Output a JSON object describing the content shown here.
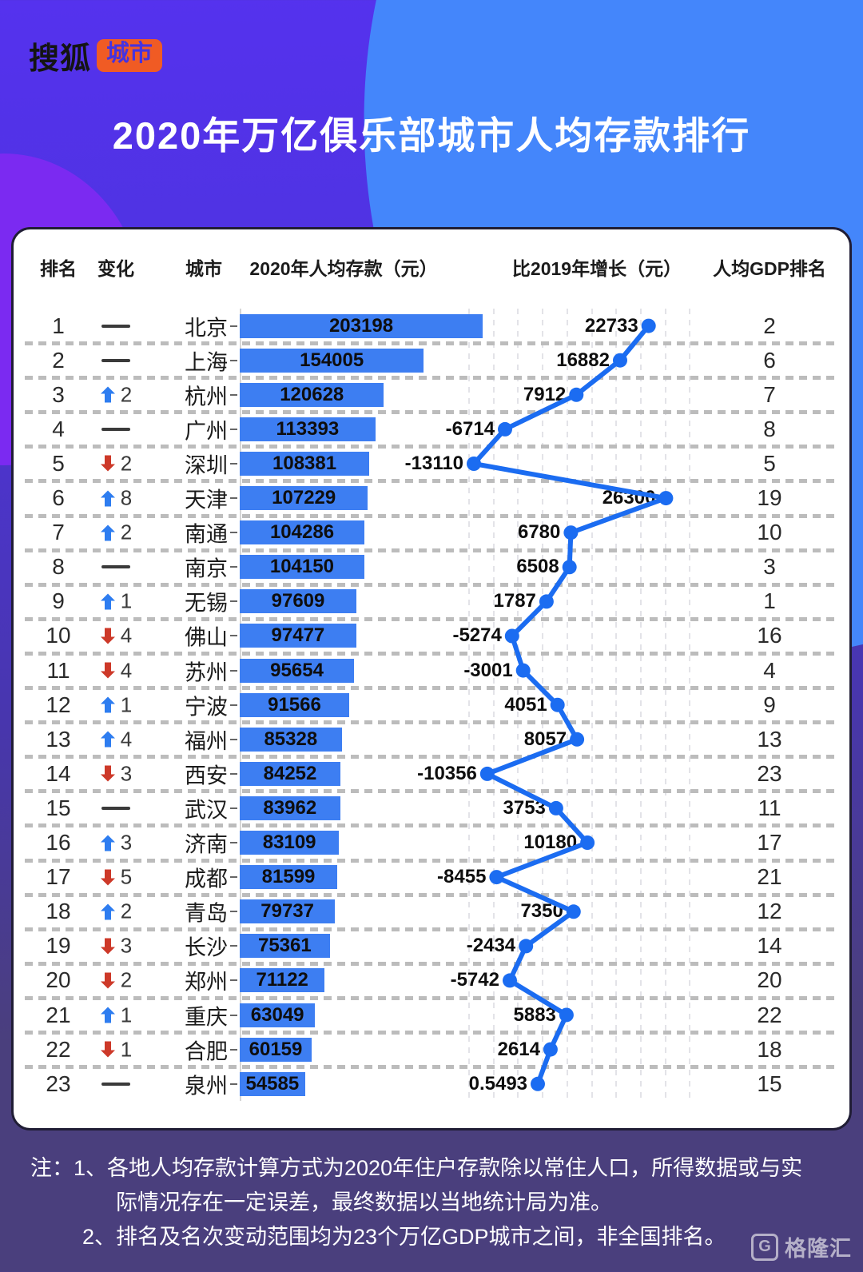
{
  "brand": {
    "sohu": "搜狐",
    "city_tag": "城市"
  },
  "title": "2020年万亿俱乐部城市人均存款排行",
  "table": {
    "headers": {
      "rank": "排名",
      "change": "变化",
      "city": "城市",
      "deposit": "2020年人均存款（元）",
      "growth": "比2019年增长（元）",
      "gdp_rank": "人均GDP排名"
    }
  },
  "chart_data": {
    "type": "table",
    "title": "2020年万亿俱乐部城市人均存款排行",
    "columns": [
      "排名",
      "变化",
      "城市",
      "2020年人均存款（元）",
      "比2019年增长（元）",
      "人均GDP排名"
    ],
    "bar_column": "2020年人均存款（元）",
    "line_column": "比2019年增长（元）",
    "bar_range": [
      0,
      203198
    ],
    "line_range": [
      -13110,
      26300
    ],
    "rows": [
      {
        "rank": "1",
        "change": {
          "dir": "same",
          "value": ""
        },
        "city": "北京",
        "deposit": 203198,
        "deposit_label": "203198",
        "growth": 22733,
        "growth_label": "22733",
        "gdp_rank": "2"
      },
      {
        "rank": "2",
        "change": {
          "dir": "same",
          "value": ""
        },
        "city": "上海",
        "deposit": 154005,
        "deposit_label": "154005",
        "growth": 16882,
        "growth_label": "16882",
        "gdp_rank": "6"
      },
      {
        "rank": "3",
        "change": {
          "dir": "up",
          "value": "2"
        },
        "city": "杭州",
        "deposit": 120628,
        "deposit_label": "120628",
        "growth": 7912,
        "growth_label": "7912",
        "gdp_rank": "7"
      },
      {
        "rank": "4",
        "change": {
          "dir": "same",
          "value": ""
        },
        "city": "广州",
        "deposit": 113393,
        "deposit_label": "113393",
        "growth": -6714,
        "growth_label": "-6714",
        "gdp_rank": "8"
      },
      {
        "rank": "5",
        "change": {
          "dir": "down",
          "value": "2"
        },
        "city": "深圳",
        "deposit": 108381,
        "deposit_label": "108381",
        "growth": -13110,
        "growth_label": "-13110",
        "gdp_rank": "5"
      },
      {
        "rank": "6",
        "change": {
          "dir": "up",
          "value": "8"
        },
        "city": "天津",
        "deposit": 107229,
        "deposit_label": "107229",
        "growth": 26300,
        "growth_label": "26300",
        "gdp_rank": "19"
      },
      {
        "rank": "7",
        "change": {
          "dir": "up",
          "value": "2"
        },
        "city": "南通",
        "deposit": 104286,
        "deposit_label": "104286",
        "growth": 6780,
        "growth_label": "6780",
        "gdp_rank": "10"
      },
      {
        "rank": "8",
        "change": {
          "dir": "same",
          "value": ""
        },
        "city": "南京",
        "deposit": 104150,
        "deposit_label": "104150",
        "growth": 6508,
        "growth_label": "6508",
        "gdp_rank": "3"
      },
      {
        "rank": "9",
        "change": {
          "dir": "up",
          "value": "1"
        },
        "city": "无锡",
        "deposit": 97609,
        "deposit_label": "97609",
        "growth": 1787,
        "growth_label": "1787",
        "gdp_rank": "1"
      },
      {
        "rank": "10",
        "change": {
          "dir": "down",
          "value": "4"
        },
        "city": "佛山",
        "deposit": 97477,
        "deposit_label": "97477",
        "growth": -5274,
        "growth_label": "-5274",
        "gdp_rank": "16"
      },
      {
        "rank": "11",
        "change": {
          "dir": "down",
          "value": "4"
        },
        "city": "苏州",
        "deposit": 95654,
        "deposit_label": "95654",
        "growth": -3001,
        "growth_label": "-3001",
        "gdp_rank": "4"
      },
      {
        "rank": "12",
        "change": {
          "dir": "up",
          "value": "1"
        },
        "city": "宁波",
        "deposit": 91566,
        "deposit_label": "91566",
        "growth": 4051,
        "growth_label": "4051",
        "gdp_rank": "9"
      },
      {
        "rank": "13",
        "change": {
          "dir": "up",
          "value": "4"
        },
        "city": "福州",
        "deposit": 85328,
        "deposit_label": "85328",
        "growth": 8057,
        "growth_label": "8057",
        "gdp_rank": "13"
      },
      {
        "rank": "14",
        "change": {
          "dir": "down",
          "value": "3"
        },
        "city": "西安",
        "deposit": 84252,
        "deposit_label": "84252",
        "growth": -10356,
        "growth_label": "-10356",
        "gdp_rank": "23"
      },
      {
        "rank": "15",
        "change": {
          "dir": "same",
          "value": ""
        },
        "city": "武汉",
        "deposit": 83962,
        "deposit_label": "83962",
        "growth": 3753,
        "growth_label": "3753",
        "gdp_rank": "11"
      },
      {
        "rank": "16",
        "change": {
          "dir": "up",
          "value": "3"
        },
        "city": "济南",
        "deposit": 83109,
        "deposit_label": "83109",
        "growth": 10180,
        "growth_label": "10180",
        "gdp_rank": "17"
      },
      {
        "rank": "17",
        "change": {
          "dir": "down",
          "value": "5"
        },
        "city": "成都",
        "deposit": 81599,
        "deposit_label": "81599",
        "growth": -8455,
        "growth_label": "-8455",
        "gdp_rank": "21"
      },
      {
        "rank": "18",
        "change": {
          "dir": "up",
          "value": "2"
        },
        "city": "青岛",
        "deposit": 79737,
        "deposit_label": "79737",
        "growth": 7350,
        "growth_label": "7350",
        "gdp_rank": "12"
      },
      {
        "rank": "19",
        "change": {
          "dir": "down",
          "value": "3"
        },
        "city": "长沙",
        "deposit": 75361,
        "deposit_label": "75361",
        "growth": -2434,
        "growth_label": "-2434",
        "gdp_rank": "14"
      },
      {
        "rank": "20",
        "change": {
          "dir": "down",
          "value": "2"
        },
        "city": "郑州",
        "deposit": 71122,
        "deposit_label": "71122",
        "growth": -5742,
        "growth_label": "-5742",
        "gdp_rank": "20"
      },
      {
        "rank": "21",
        "change": {
          "dir": "up",
          "value": "1"
        },
        "city": "重庆",
        "deposit": 63049,
        "deposit_label": "63049",
        "growth": 5883,
        "growth_label": "5883",
        "gdp_rank": "22"
      },
      {
        "rank": "22",
        "change": {
          "dir": "down",
          "value": "1"
        },
        "city": "合肥",
        "deposit": 60159,
        "deposit_label": "60159",
        "growth": 2614,
        "growth_label": "2614",
        "gdp_rank": "18"
      },
      {
        "rank": "23",
        "change": {
          "dir": "same",
          "value": ""
        },
        "city": "泉州",
        "deposit": 54585,
        "deposit_label": "54585",
        "growth": 0.5493,
        "growth_label": "0.5493",
        "gdp_rank": "15"
      }
    ]
  },
  "notes": {
    "line1": "注：1、各地人均存款计算方式为2020年住户存款除以常住人口，所得数据或与实",
    "line2": "际情况存在一定误差，最终数据以当地统计局为准。",
    "line3": "2、排名及名次变动范围均为23个万亿GDP城市之间，非全国排名。"
  },
  "watermark": {
    "g": "G",
    "text": "格隆汇"
  },
  "colors": {
    "bar_blue": "#3d7ef2",
    "line_blue": "#1b6cf1",
    "up_arrow": "#2e7df0",
    "down_arrow": "#cd3929",
    "badge_orange": "#f05b24",
    "bg_indigo": "#5532ee",
    "bg_bottom_purple": "#4a3f7d",
    "blob_blue": "#4486fb",
    "blob_purple": "#7b2af1"
  }
}
